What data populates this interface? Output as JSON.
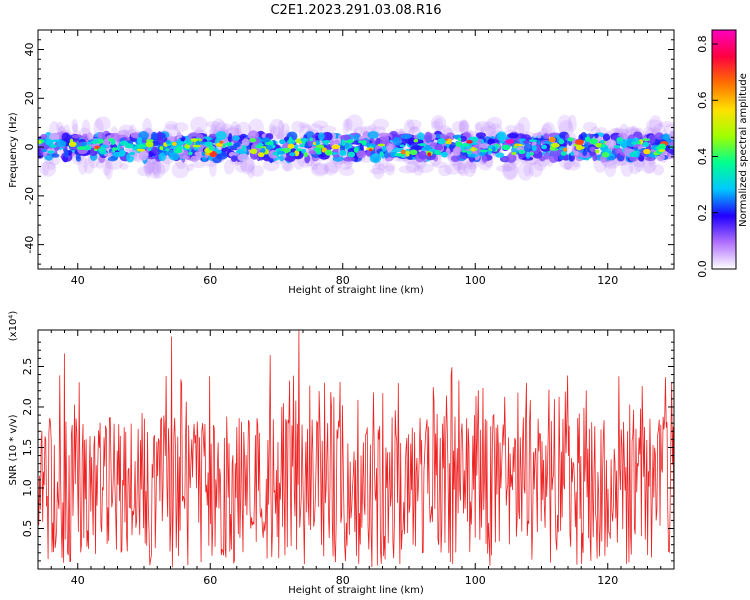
{
  "title": "C2E1.2023.291.03.08.R16",
  "chart_data": [
    {
      "type": "heatmap",
      "xlabel": "Height of straight line (km)",
      "ylabel": "Frequency (Hz)",
      "xlim": [
        34,
        130
      ],
      "ylim": [
        -50,
        48
      ],
      "x_ticks": [
        40,
        60,
        80,
        100,
        120
      ],
      "y_ticks": [
        -40,
        -20,
        0,
        20,
        40
      ],
      "band_center_hz": 0,
      "band_halfwidth_hz": 5,
      "colorbar": {
        "label": "Normalized spectral amplitude",
        "range": [
          0.0,
          0.85
        ],
        "ticks": [
          0.0,
          0.2,
          0.4,
          0.6,
          0.8
        ],
        "colormap": [
          "#ffffff",
          "#b070ff",
          "#2000ff",
          "#00c8ff",
          "#00ff90",
          "#a0ff00",
          "#ffe000",
          "#ff7000",
          "#ff0040",
          "#ff00c0"
        ]
      }
    },
    {
      "type": "line",
      "xlabel": "Height of straight line (km)",
      "ylabel": "SNR (10 * v/v)",
      "multiplier_label": "(x10⁴)",
      "xlim": [
        34,
        130
      ],
      "ylim": [
        0,
        2.95
      ],
      "x_ticks": [
        40,
        60,
        80,
        100,
        120
      ],
      "y_ticks": [
        0.5,
        1.0,
        1.5,
        2.0,
        2.5
      ],
      "series_color": "#ee2222",
      "peaks": [
        {
          "x": 54.2,
          "y": 2.87
        },
        {
          "x": 73.4,
          "y": 2.95
        },
        {
          "x": 69.0,
          "y": 2.64
        },
        {
          "x": 38.0,
          "y": 2.66
        },
        {
          "x": 96.5,
          "y": 2.49
        },
        {
          "x": 129.7,
          "y": 2.3
        }
      ],
      "baseline_mean": 1.05
    }
  ]
}
